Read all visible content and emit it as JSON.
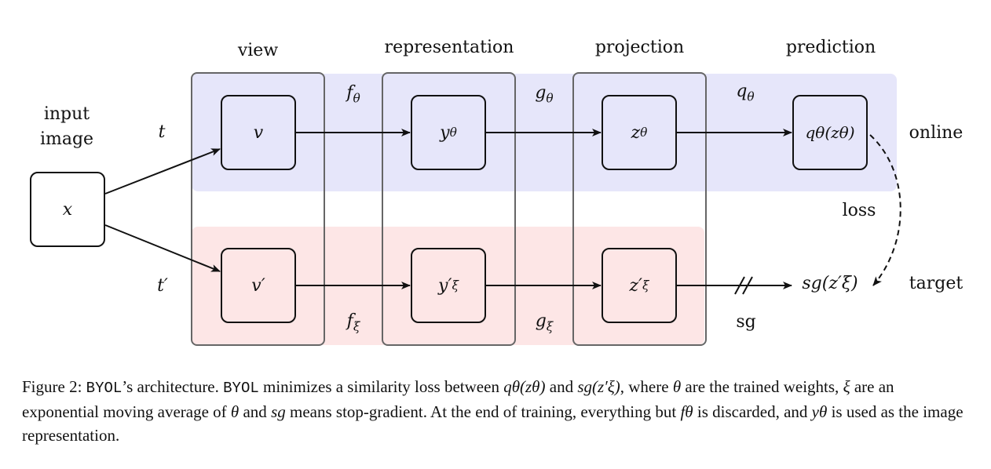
{
  "headers": {
    "view": "view",
    "representation": "representation",
    "projection": "projection",
    "prediction": "prediction"
  },
  "side_labels": {
    "input_line1": "input",
    "input_line2": "image",
    "online": "online",
    "target": "target",
    "loss": "loss",
    "sg": "sg"
  },
  "nodes": {
    "input": "x",
    "online_view": "v",
    "online_rep_base": "y",
    "online_rep_sub": "θ",
    "online_proj_base": "z",
    "online_proj_sub": "θ",
    "online_pred": "qθ(zθ)",
    "target_view": "v′",
    "target_rep_base": "y′",
    "target_rep_sub": "ξ",
    "target_proj_base": "z′",
    "target_proj_sub": "ξ",
    "target_out": "sg(z′ξ)"
  },
  "edge_labels": {
    "t": "t",
    "t_prime": "t′",
    "f_base": "f",
    "f_theta_sub": "θ",
    "g_base": "g",
    "g_theta_sub": "θ",
    "q_base": "q",
    "q_theta_sub": "θ",
    "f_xi_sub": "ξ",
    "g_xi_sub": "ξ"
  },
  "caption": {
    "p1": "Figure 2: ",
    "byol1": "BYOL",
    "p2": "’s architecture. ",
    "byol2": "BYOL",
    "p3": " minimizes a similarity loss between ",
    "m1": "qθ(zθ)",
    "p4": " and ",
    "m2": "sg(z′ξ)",
    "p5": ", where ",
    "m3": "θ",
    "p6": " are the trained weights, ",
    "m4": "ξ",
    "p7": " are an exponential moving average of ",
    "m5": "θ",
    "p8": " and ",
    "m6": "sg",
    "p9": " means stop-gradient. At the end of training, everything but ",
    "m7": "fθ",
    "p10": " is discarded, and ",
    "m8": "yθ",
    "p11": " is used as the image representation."
  },
  "colors": {
    "online_band": "#e6e6fa",
    "target_band": "#fde6e6",
    "column_border": "#666666",
    "node_border": "#111111"
  }
}
